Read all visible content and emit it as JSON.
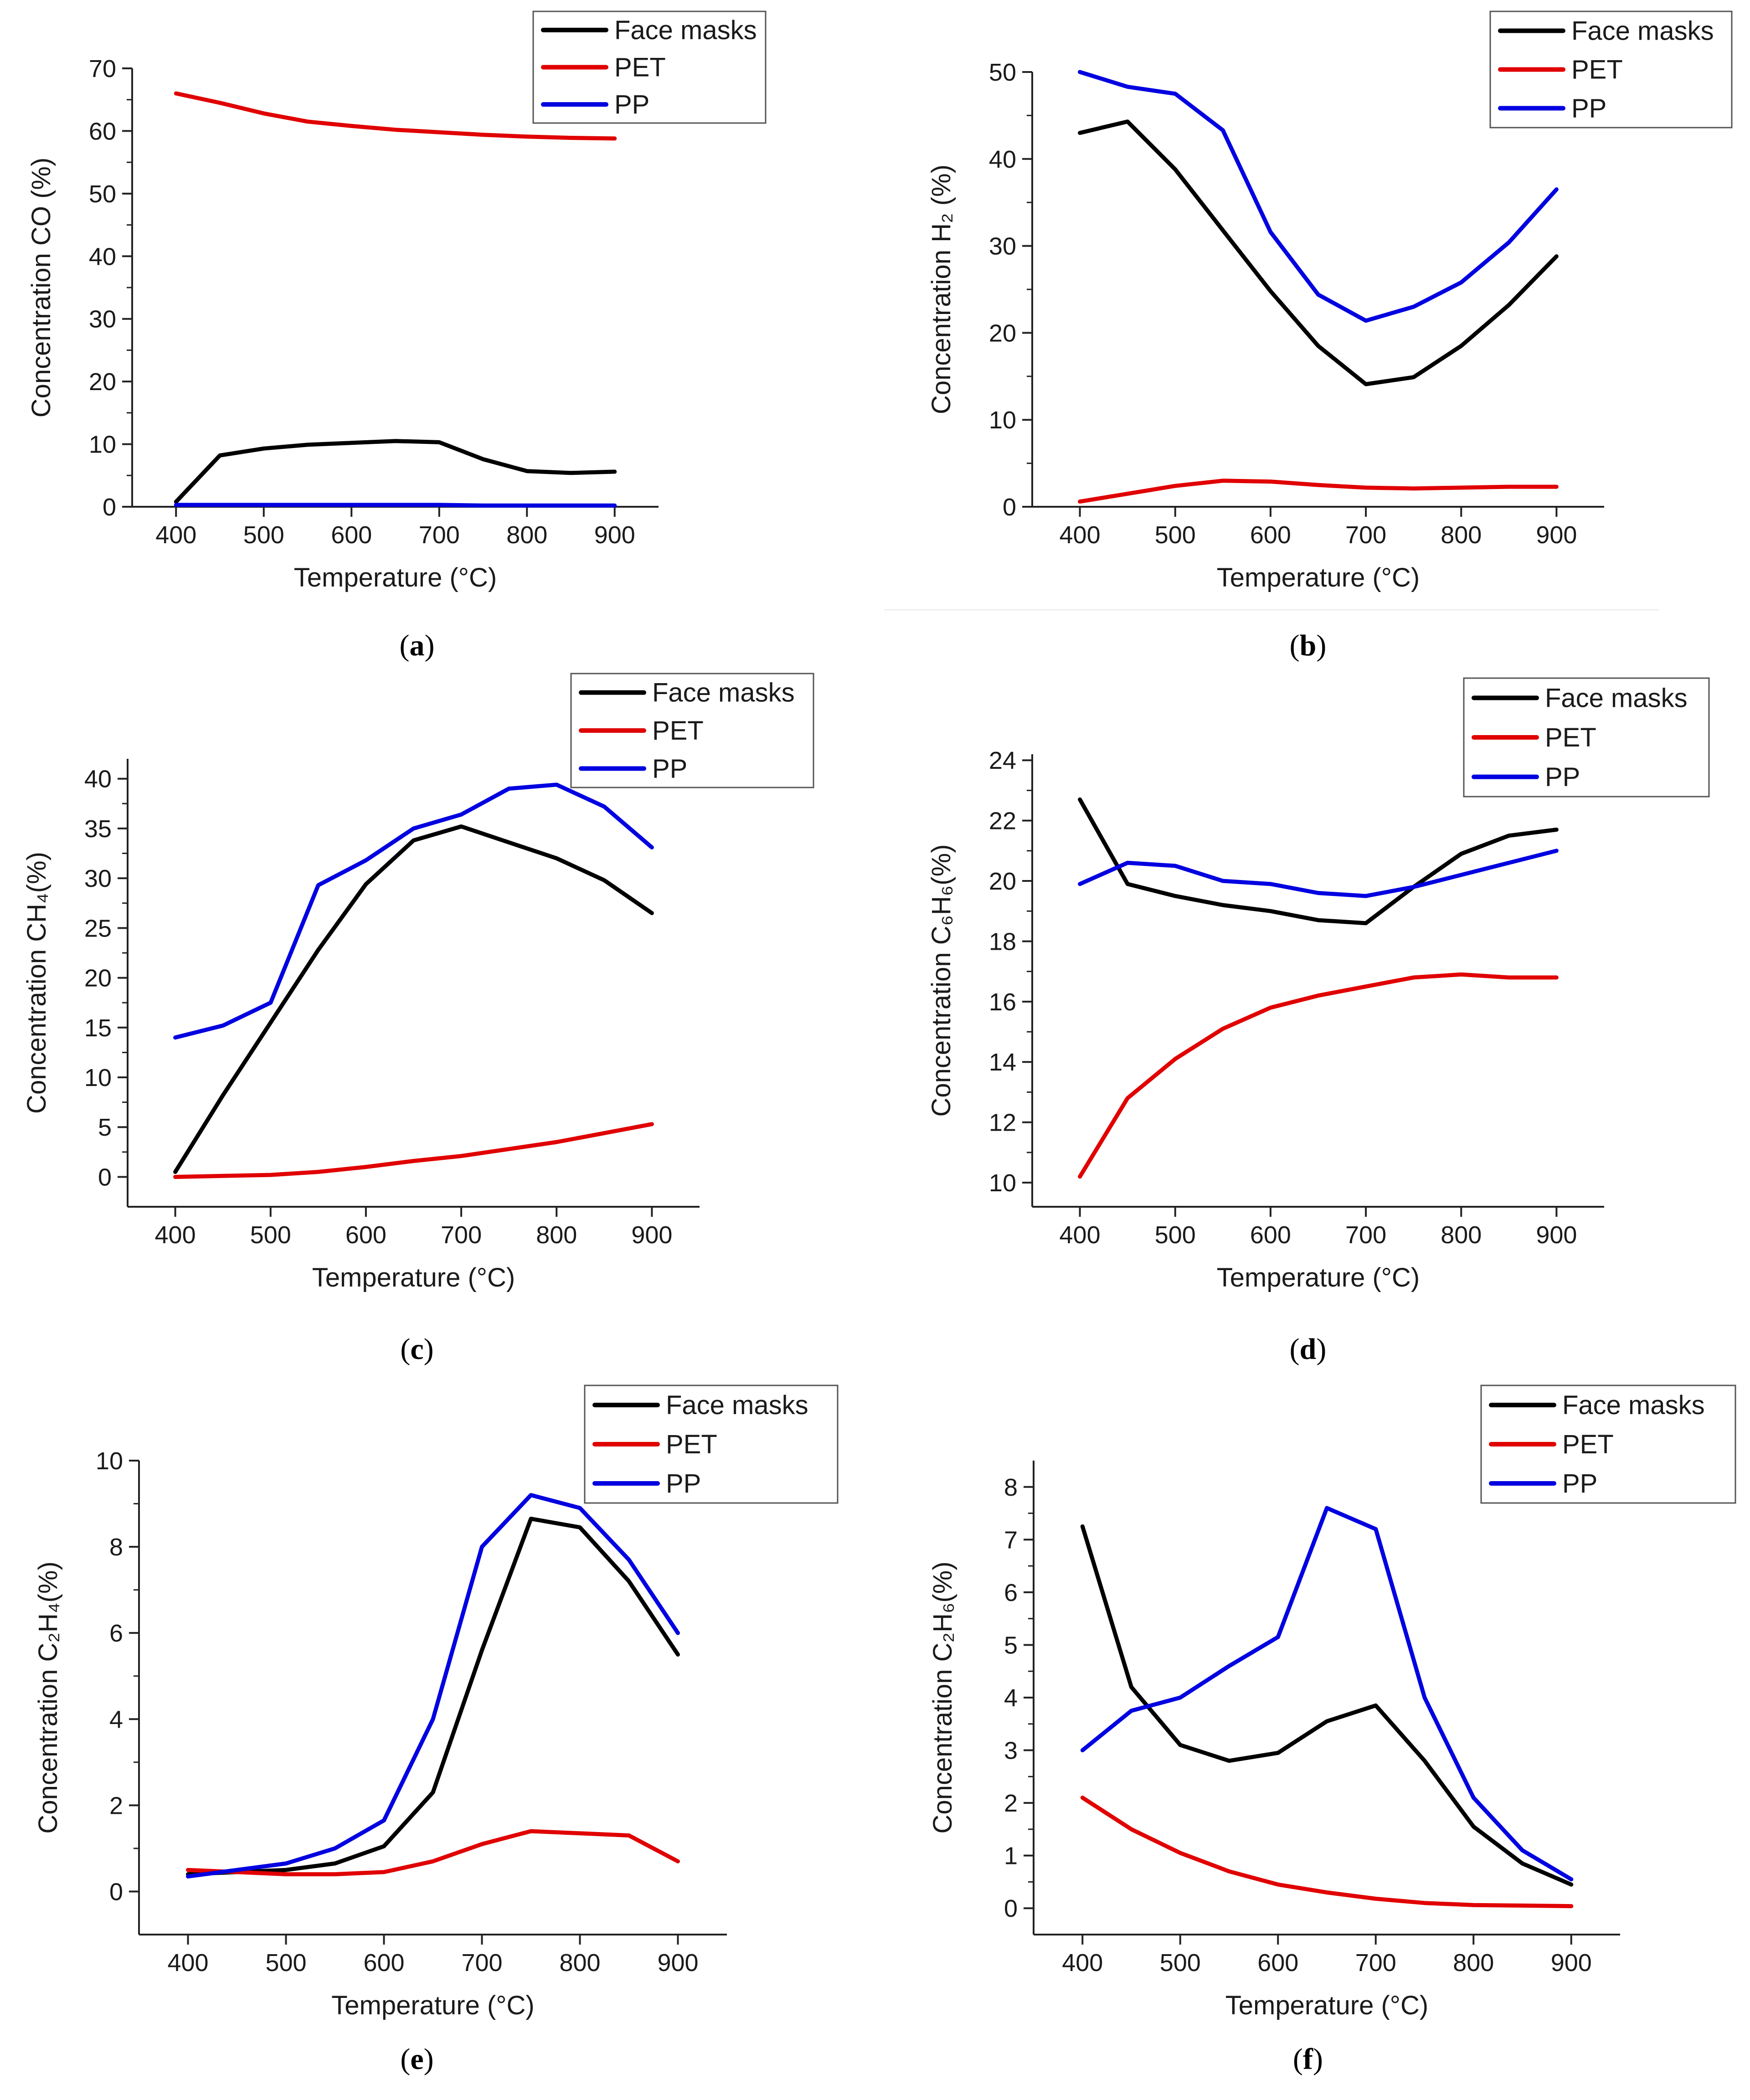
{
  "figure": {
    "captions": [
      "(a)",
      "(b)",
      "(c)",
      "(d)",
      "(e)",
      "(f)"
    ]
  },
  "series_colors": {
    "Face masks": "#000000",
    "PET": "#e00000",
    "PP": "#0000e0"
  },
  "chart_data": [
    {
      "panel": "a",
      "type": "line",
      "xlabel": "Temperature (°C)",
      "ylabel": "Concentration CO (%)",
      "xlim": [
        350,
        950
      ],
      "ylim": [
        0,
        70
      ],
      "xticks": [
        400,
        500,
        600,
        700,
        800,
        900
      ],
      "yticks": [
        0,
        10,
        20,
        30,
        40,
        50,
        60,
        70
      ],
      "legend_position": "top-right",
      "x": [
        400,
        450,
        500,
        550,
        600,
        650,
        700,
        750,
        800,
        850,
        900
      ],
      "series": [
        {
          "name": "Face masks",
          "values": [
            0.8,
            8.2,
            9.3,
            9.9,
            10.2,
            10.5,
            10.3,
            7.6,
            5.7,
            5.4,
            5.6
          ]
        },
        {
          "name": "PET",
          "values": [
            66.0,
            64.5,
            62.8,
            61.5,
            60.8,
            60.2,
            59.8,
            59.4,
            59.1,
            58.9,
            58.8
          ]
        },
        {
          "name": "PP",
          "values": [
            0.3,
            0.3,
            0.3,
            0.3,
            0.3,
            0.3,
            0.3,
            0.2,
            0.2,
            0.2,
            0.2
          ]
        }
      ]
    },
    {
      "panel": "b",
      "type": "line",
      "xlabel": "Temperature (°C)",
      "ylabel": "Concentration H₂ (%)",
      "xlim": [
        350,
        950
      ],
      "ylim": [
        0,
        50
      ],
      "xticks": [
        400,
        500,
        600,
        700,
        800,
        900
      ],
      "yticks": [
        0,
        10,
        20,
        30,
        40,
        50
      ],
      "legend_position": "top-right",
      "x": [
        400,
        450,
        500,
        550,
        600,
        650,
        700,
        750,
        800,
        850,
        900
      ],
      "series": [
        {
          "name": "Face masks",
          "values": [
            43.0,
            44.3,
            38.8,
            31.8,
            24.8,
            18.5,
            14.1,
            14.9,
            18.5,
            23.2,
            28.8
          ]
        },
        {
          "name": "PET",
          "values": [
            0.6,
            1.5,
            2.4,
            3.0,
            2.9,
            2.5,
            2.2,
            2.1,
            2.2,
            2.3,
            2.3
          ]
        },
        {
          "name": "PP",
          "values": [
            50.0,
            48.3,
            47.5,
            43.3,
            31.6,
            24.4,
            21.4,
            23.0,
            25.8,
            30.4,
            36.5
          ]
        }
      ]
    },
    {
      "panel": "c",
      "type": "line",
      "xlabel": "Temperature (°C)",
      "ylabel": "Concentration CH₄(%)",
      "xlim": [
        350,
        950
      ],
      "ylim": [
        -3,
        42
      ],
      "xticks": [
        400,
        500,
        600,
        700,
        800,
        900
      ],
      "yticks": [
        0,
        5,
        10,
        15,
        20,
        25,
        30,
        35,
        40
      ],
      "legend_position": "top-right",
      "x": [
        400,
        450,
        500,
        550,
        600,
        650,
        700,
        750,
        800,
        850,
        900
      ],
      "series": [
        {
          "name": "Face masks",
          "values": [
            0.5,
            8.2,
            15.5,
            22.8,
            29.4,
            33.8,
            35.2,
            33.6,
            32.0,
            29.8,
            26.5
          ]
        },
        {
          "name": "PET",
          "values": [
            0.0,
            0.1,
            0.2,
            0.5,
            1.0,
            1.6,
            2.1,
            2.8,
            3.5,
            4.4,
            5.3
          ]
        },
        {
          "name": "PP",
          "values": [
            14.0,
            15.2,
            17.5,
            29.3,
            31.8,
            35.0,
            36.4,
            39.0,
            39.4,
            37.2,
            33.1
          ]
        }
      ]
    },
    {
      "panel": "d",
      "type": "line",
      "xlabel": "Temperature (°C)",
      "ylabel": "Concentration C₆H₆(%)",
      "xlim": [
        350,
        950
      ],
      "ylim": [
        9.2,
        24.2
      ],
      "xticks": [
        400,
        500,
        600,
        700,
        800,
        900
      ],
      "yticks": [
        10,
        12,
        14,
        16,
        18,
        20,
        22,
        24
      ],
      "legend_position": "top-right",
      "x": [
        400,
        450,
        500,
        550,
        600,
        650,
        700,
        750,
        800,
        850,
        900
      ],
      "series": [
        {
          "name": "Face masks",
          "values": [
            22.7,
            19.9,
            19.5,
            19.2,
            19.0,
            18.7,
            18.6,
            19.8,
            20.9,
            21.5,
            21.7
          ]
        },
        {
          "name": "PET",
          "values": [
            10.2,
            12.8,
            14.1,
            15.1,
            15.8,
            16.2,
            16.5,
            16.8,
            16.9,
            16.8,
            16.8
          ]
        },
        {
          "name": "PP",
          "values": [
            19.9,
            20.6,
            20.5,
            20.0,
            19.9,
            19.6,
            19.5,
            19.8,
            20.2,
            20.6,
            21.0
          ]
        }
      ]
    },
    {
      "panel": "e",
      "type": "line",
      "xlabel": "Temperature (°C)",
      "ylabel": "Concentration C₂H₄(%)",
      "xlim": [
        350,
        950
      ],
      "ylim": [
        -1,
        10
      ],
      "xticks": [
        400,
        500,
        600,
        700,
        800,
        900
      ],
      "yticks": [
        0,
        2,
        4,
        6,
        8,
        10
      ],
      "legend_position": "top-right",
      "x": [
        400,
        450,
        500,
        550,
        600,
        650,
        700,
        750,
        800,
        850,
        900
      ],
      "series": [
        {
          "name": "Face masks",
          "values": [
            0.4,
            0.45,
            0.5,
            0.65,
            1.05,
            2.3,
            5.6,
            8.65,
            8.45,
            7.2,
            5.5
          ]
        },
        {
          "name": "PET",
          "values": [
            0.5,
            0.45,
            0.4,
            0.4,
            0.45,
            0.7,
            1.1,
            1.4,
            1.35,
            1.3,
            0.7
          ]
        },
        {
          "name": "PP",
          "values": [
            0.35,
            0.5,
            0.65,
            1.0,
            1.65,
            4.0,
            8.0,
            9.2,
            8.9,
            7.7,
            6.0
          ]
        }
      ]
    },
    {
      "panel": "f",
      "type": "line",
      "xlabel": "Temperature (°C)",
      "ylabel": "Concentration C₂H₆(%)",
      "xlim": [
        350,
        950
      ],
      "ylim": [
        -0.5,
        8.5
      ],
      "xticks": [
        400,
        500,
        600,
        700,
        800,
        900
      ],
      "yticks": [
        0,
        1,
        2,
        3,
        4,
        5,
        6,
        7,
        8
      ],
      "legend_position": "top-right",
      "x": [
        400,
        450,
        500,
        550,
        600,
        650,
        700,
        750,
        800,
        850,
        900
      ],
      "series": [
        {
          "name": "Face masks",
          "values": [
            7.25,
            4.2,
            3.1,
            2.8,
            2.95,
            3.55,
            3.85,
            2.8,
            1.55,
            0.85,
            0.45
          ]
        },
        {
          "name": "PET",
          "values": [
            2.1,
            1.5,
            1.05,
            0.7,
            0.45,
            0.3,
            0.18,
            0.1,
            0.06,
            0.05,
            0.04
          ]
        },
        {
          "name": "PP",
          "values": [
            3.0,
            3.75,
            4.0,
            4.6,
            5.15,
            7.6,
            7.2,
            4.0,
            2.1,
            1.1,
            0.55
          ]
        }
      ]
    }
  ]
}
